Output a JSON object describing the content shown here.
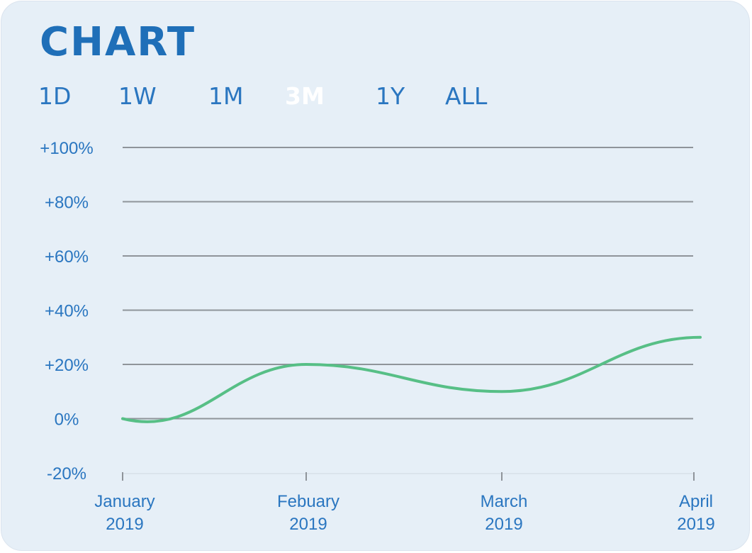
{
  "title": "CHART",
  "tabs": [
    {
      "label": "1D",
      "active": false
    },
    {
      "label": "1W",
      "active": false
    },
    {
      "label": "1M",
      "active": false
    },
    {
      "label": "3M",
      "active": true
    },
    {
      "label": "1Y",
      "active": false
    },
    {
      "label": "ALL",
      "active": false
    }
  ],
  "colors": {
    "card_background": "#e6eff7",
    "accent": "#1f6fb8",
    "active_tab": "#ffffff",
    "gridline": "#8f949a",
    "series_line": "#57bf86"
  },
  "chart_data": {
    "type": "line",
    "title": "",
    "xlabel": "",
    "ylabel": "",
    "ylim": [
      -20,
      100
    ],
    "y_ticks": [
      {
        "value": 100,
        "label": "+100%"
      },
      {
        "value": 80,
        "label": "+80%"
      },
      {
        "value": 60,
        "label": "+60%"
      },
      {
        "value": 40,
        "label": "+40%"
      },
      {
        "value": 20,
        "label": "+20%"
      },
      {
        "value": 0,
        "label": "0%"
      },
      {
        "value": -20,
        "label": "-20%"
      }
    ],
    "x_ticks": [
      {
        "line1": "January",
        "line2": "2019"
      },
      {
        "line1": "Febuary",
        "line2": "2019"
      },
      {
        "line1": "March",
        "line2": "2019"
      },
      {
        "line1": "April",
        "line2": "2019"
      }
    ],
    "categories": [
      "January 2019",
      "Febuary 2019",
      "March 2019",
      "April 2019"
    ],
    "values": [
      0,
      20,
      10,
      30
    ],
    "grid": true,
    "legend": "none"
  }
}
